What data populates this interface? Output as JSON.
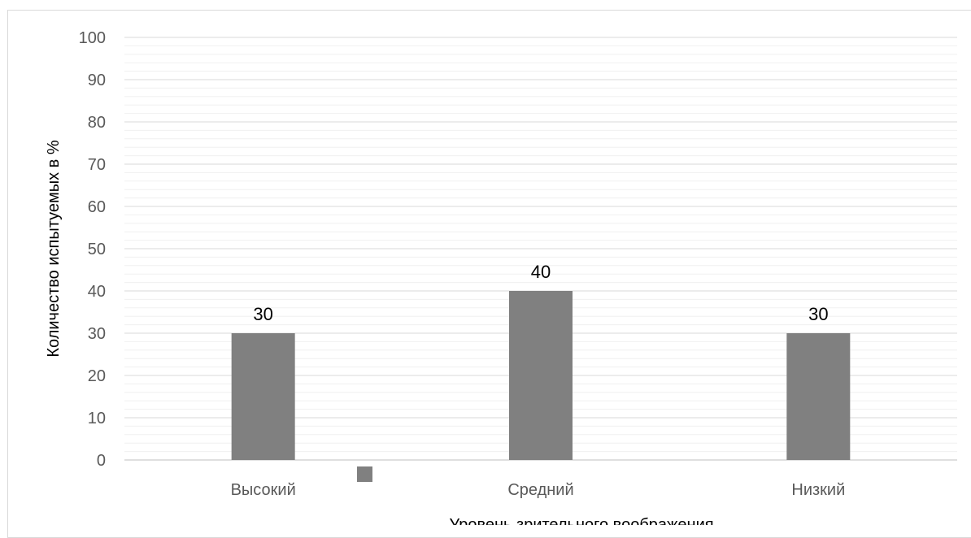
{
  "chart_data": {
    "type": "bar",
    "title": "",
    "xlabel": "Уровень зрительного воображения",
    "ylabel": "Количество испытуемых в %",
    "categories": [
      "Высокий",
      "Средний",
      "Низкий"
    ],
    "values": [
      30,
      40,
      30
    ],
    "data_labels": [
      "30",
      "40",
      "30"
    ],
    "ylim": [
      0,
      100
    ],
    "yticks": [
      "0",
      "10",
      "20",
      "30",
      "40",
      "50",
      "60",
      "70",
      "80",
      "90",
      "100"
    ],
    "major_gridlines": true,
    "minor_gridlines": true,
    "legend": "bottom",
    "colors": {
      "bar": "#808080",
      "major_grid": "#d9d9d9",
      "minor_grid": "#f0f0f0",
      "axis_line": "#bfbfbf",
      "legend_swatch": "#808080"
    }
  }
}
